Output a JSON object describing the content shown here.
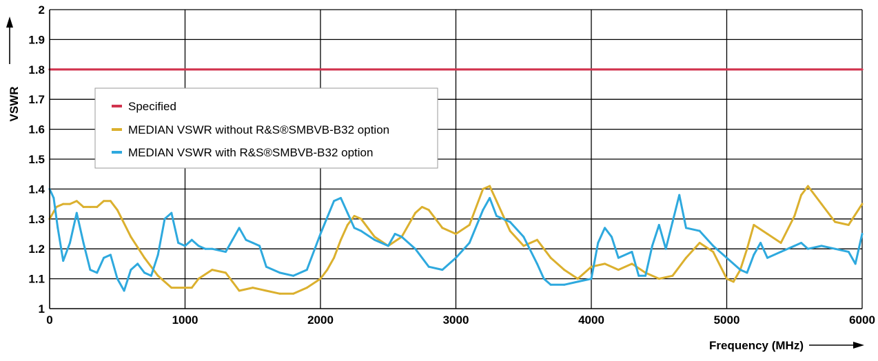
{
  "chart_data": {
    "type": "line",
    "ylabel": "VSWR",
    "xlabel": "Frequency (MHz)",
    "xlim": [
      0,
      6000
    ],
    "ylim": [
      1,
      2
    ],
    "x_ticks": [
      0,
      1000,
      2000,
      3000,
      4000,
      5000,
      6000
    ],
    "x_tick_labels": [
      "0",
      "1000",
      "2000",
      "3000",
      "4000",
      "5000",
      "6000"
    ],
    "y_ticks": [
      1,
      1.1,
      1.2,
      1.3,
      1.4,
      1.5,
      1.6,
      1.7,
      1.8,
      1.9,
      2
    ],
    "y_tick_labels": [
      "1",
      "1.1",
      "1.2",
      "1.3",
      "1.4",
      "1.5",
      "1.6",
      "1.7",
      "1.8",
      "1.9",
      "2"
    ],
    "grid": true,
    "legend_position": "upper-left",
    "series": [
      {
        "name": "Specified",
        "color": "#d1334e",
        "x": [
          0,
          6000
        ],
        "y": [
          1.8,
          1.8
        ]
      },
      {
        "name": "MEDIAN VSWR without R&S®SMBVB-B32 option",
        "color": "#dbb02e",
        "x": [
          0,
          50,
          100,
          150,
          200,
          250,
          300,
          350,
          400,
          450,
          500,
          600,
          700,
          800,
          900,
          1000,
          1050,
          1100,
          1200,
          1300,
          1350,
          1400,
          1500,
          1600,
          1700,
          1800,
          1900,
          2000,
          2050,
          2100,
          2150,
          2200,
          2250,
          2300,
          2400,
          2500,
          2600,
          2700,
          2750,
          2800,
          2900,
          3000,
          3100,
          3200,
          3250,
          3300,
          3400,
          3500,
          3600,
          3700,
          3800,
          3900,
          4000,
          4100,
          4200,
          4300,
          4400,
          4500,
          4600,
          4700,
          4800,
          4900,
          5000,
          5050,
          5100,
          5150,
          5200,
          5300,
          5400,
          5500,
          5550,
          5600,
          5700,
          5800,
          5900,
          6000
        ],
        "y": [
          1.3,
          1.34,
          1.35,
          1.35,
          1.36,
          1.34,
          1.34,
          1.34,
          1.36,
          1.36,
          1.33,
          1.24,
          1.17,
          1.11,
          1.07,
          1.07,
          1.07,
          1.1,
          1.13,
          1.12,
          1.09,
          1.06,
          1.07,
          1.06,
          1.05,
          1.05,
          1.07,
          1.1,
          1.13,
          1.17,
          1.23,
          1.28,
          1.31,
          1.3,
          1.24,
          1.21,
          1.24,
          1.32,
          1.34,
          1.33,
          1.27,
          1.25,
          1.28,
          1.4,
          1.41,
          1.36,
          1.26,
          1.21,
          1.23,
          1.17,
          1.13,
          1.1,
          1.14,
          1.15,
          1.13,
          1.15,
          1.12,
          1.1,
          1.11,
          1.17,
          1.22,
          1.19,
          1.1,
          1.09,
          1.13,
          1.2,
          1.28,
          1.25,
          1.22,
          1.31,
          1.38,
          1.41,
          1.35,
          1.29,
          1.28,
          1.35
        ]
      },
      {
        "name": "MEDIAN VSWR with R&S®SMBVB-B32 option",
        "color": "#2ea9de",
        "x": [
          0,
          30,
          60,
          100,
          150,
          200,
          250,
          300,
          350,
          400,
          450,
          500,
          550,
          600,
          650,
          700,
          750,
          800,
          850,
          900,
          950,
          1000,
          1050,
          1100,
          1150,
          1200,
          1300,
          1350,
          1400,
          1450,
          1500,
          1550,
          1600,
          1700,
          1800,
          1900,
          2000,
          2100,
          2150,
          2200,
          2250,
          2300,
          2400,
          2500,
          2550,
          2600,
          2700,
          2800,
          2900,
          3000,
          3100,
          3200,
          3250,
          3300,
          3400,
          3500,
          3600,
          3650,
          3700,
          3800,
          3900,
          4000,
          4050,
          4100,
          4150,
          4200,
          4300,
          4350,
          4400,
          4450,
          4500,
          4550,
          4600,
          4650,
          4700,
          4800,
          4900,
          5000,
          5100,
          5150,
          5200,
          5250,
          5300,
          5400,
          5500,
          5550,
          5600,
          5700,
          5800,
          5900,
          5950,
          6000
        ],
        "y": [
          1.4,
          1.37,
          1.27,
          1.16,
          1.22,
          1.32,
          1.22,
          1.13,
          1.12,
          1.17,
          1.18,
          1.1,
          1.06,
          1.13,
          1.15,
          1.12,
          1.11,
          1.18,
          1.3,
          1.32,
          1.22,
          1.21,
          1.23,
          1.21,
          1.2,
          1.2,
          1.19,
          1.23,
          1.27,
          1.23,
          1.22,
          1.21,
          1.14,
          1.12,
          1.11,
          1.13,
          1.25,
          1.36,
          1.37,
          1.32,
          1.27,
          1.26,
          1.23,
          1.21,
          1.25,
          1.24,
          1.2,
          1.14,
          1.13,
          1.17,
          1.22,
          1.33,
          1.37,
          1.31,
          1.29,
          1.24,
          1.15,
          1.1,
          1.08,
          1.08,
          1.09,
          1.1,
          1.22,
          1.27,
          1.24,
          1.17,
          1.19,
          1.11,
          1.11,
          1.21,
          1.28,
          1.2,
          1.29,
          1.38,
          1.27,
          1.26,
          1.21,
          1.17,
          1.13,
          1.12,
          1.18,
          1.22,
          1.17,
          1.19,
          1.21,
          1.22,
          1.2,
          1.21,
          1.2,
          1.19,
          1.15,
          1.25
        ]
      }
    ]
  }
}
